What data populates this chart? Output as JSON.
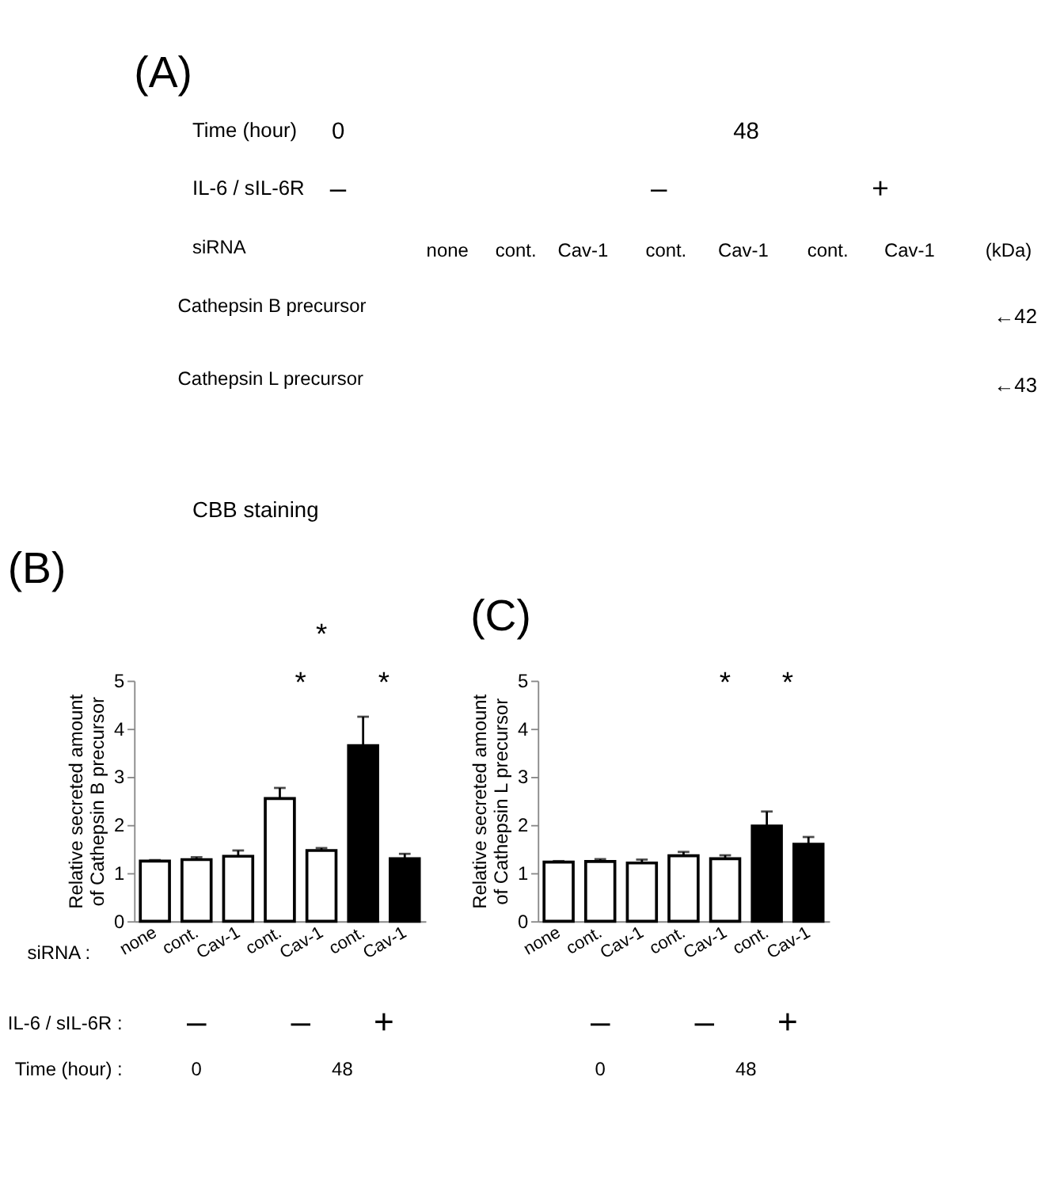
{
  "chart_data": [
    {
      "type": "other",
      "title": "(A)",
      "annotations": [
        "Time (hour)",
        "0",
        "48",
        "IL-6 / sIL-6R",
        "–",
        "–",
        "+",
        "siRNA",
        "none",
        "cont.",
        "Cav-1",
        "cont.",
        "Cav-1",
        "cont.",
        "Cav-1",
        "(kDa)",
        "Cathepsin B precursor",
        "←42",
        "Cathepsin L precursor",
        "←43",
        "CBB staining"
      ]
    },
    {
      "type": "bar",
      "title": "(B)",
      "ylabel": "Relative secreted amount of Cathepsin B precursor",
      "categories": [
        "none",
        "cont.",
        "Cav-1",
        "cont.",
        "Cav-1",
        "cont.",
        "Cav-1"
      ],
      "values": [
        1.25,
        1.28,
        1.35,
        2.55,
        1.47,
        3.65,
        1.3
      ],
      "errors": [
        0.02,
        0.05,
        0.12,
        0.22,
        0.05,
        0.6,
        0.1
      ],
      "colors": [
        "#ffffff",
        "#ffffff",
        "#ffffff",
        "#ffffff",
        "#ffffff",
        "#000000",
        "#000000"
      ],
      "ylim": [
        0,
        5
      ],
      "yticks": [
        0,
        1,
        2,
        3,
        4,
        5
      ],
      "grid": false,
      "annotations": [
        "*",
        "*",
        "*",
        "siRNA :",
        "IL-6 / sIL-6R :",
        "–",
        "–",
        "+",
        "Time (hour) :",
        "0",
        "48"
      ]
    },
    {
      "type": "bar",
      "title": "(C)",
      "ylabel": "Relative secreted amount of Cathepsin L precursor",
      "categories": [
        "none",
        "cont.",
        "Cav-1",
        "cont.",
        "Cav-1",
        "cont.",
        "Cav-1"
      ],
      "values": [
        1.23,
        1.24,
        1.21,
        1.36,
        1.3,
        1.98,
        1.6
      ],
      "errors": [
        0.02,
        0.05,
        0.07,
        0.08,
        0.07,
        0.3,
        0.15
      ],
      "colors": [
        "#ffffff",
        "#ffffff",
        "#ffffff",
        "#ffffff",
        "#ffffff",
        "#000000",
        "#000000"
      ],
      "ylim": [
        0,
        5
      ],
      "yticks": [
        0,
        1,
        2,
        3,
        4,
        5
      ],
      "grid": false,
      "annotations": [
        "*",
        "*",
        "–",
        "–",
        "+",
        "0",
        "48"
      ]
    }
  ]
}
